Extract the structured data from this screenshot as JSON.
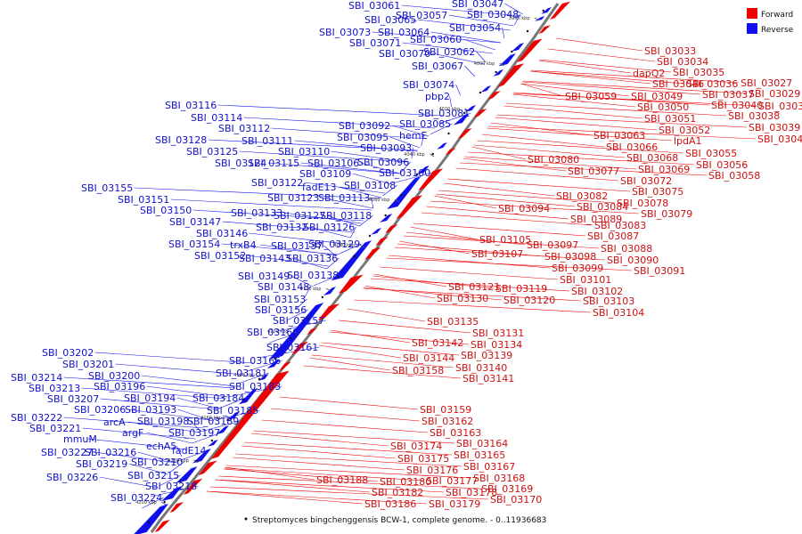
{
  "caption": "Streptomyces bingchenggensis BCW-1, complete genome. - 0..11936683",
  "legend": [
    {
      "label": "Forward",
      "color": "#ee0000"
    },
    {
      "label": "Reverse",
      "color": "#1010ee"
    }
  ],
  "axis": {
    "color": "#777777",
    "ticks": [
      "3980 kbp",
      "4000 kbp",
      "4020 kbp",
      "4040 kbp",
      "4060 kbp",
      "4080 kbp",
      "4100 kbp",
      "4120 kbp",
      "4140 kbp",
      "4160 kbp",
      "4180 kbp",
      "4200 kbp"
    ]
  },
  "reverse_labels": [
    "SBI_03047",
    "SBI_03048",
    "SBI_03061",
    "SBI_03057",
    "SBI_03065",
    "SBI_03054",
    "SBI_03073",
    "SBI_03064",
    "SBI_03060",
    "SBI_03071",
    "SBI_03062",
    "SBI_03070",
    "SBI_03067",
    "SBI_03074",
    "pbp2",
    "SBI_03081",
    "SBI_03085",
    "SBI_03092",
    "SBI_03095",
    "hemE",
    "SBI_03093",
    "SBI_03096",
    "SBI_03100",
    "SBI_03116",
    "SBI_03114",
    "SBI_03112",
    "SBI_03111",
    "SBI_03110",
    "SBI_03128",
    "SBI_03125",
    "SBI_03124",
    "SBI_03115",
    "SBI_03106",
    "SBI_03109",
    "SBI_03108",
    "SBI_03122",
    "fadE13",
    "SBI_03123",
    "SBI_03113",
    "SBI_03155",
    "SBI_03151",
    "SBI_03150",
    "SBI_03133",
    "SBI_03127",
    "SBI_03118",
    "SBI_03132",
    "SBI_03126",
    "SBI_03147",
    "SBI_03146",
    "trxB4",
    "SBI_03137",
    "SBI_03129",
    "SBI_03154",
    "SBI_03152",
    "SBI_03143",
    "SBI_03136",
    "SBI_03149",
    "SBI_03138",
    "SBI_03148",
    "SBI_03153",
    "SBI_03156",
    "SBI_03157",
    "SBI_03160",
    "SBI_03161",
    "SBI_03166",
    "SBI_03181",
    "SBI_03202",
    "SBI_03201",
    "SBI_03200",
    "SBI_03214",
    "SBI_03213",
    "SBI_03196",
    "SBI_03183",
    "SBI_03207",
    "SBI_03194",
    "SBI_03184",
    "SBI_03206",
    "SBI_03193",
    "SBI_03185",
    "SBI_03222",
    "arcA",
    "SBI_03198",
    "SBI_03189",
    "SBI_03221",
    "argF",
    "SBI_03197",
    "mmuM",
    "echA5",
    "SBI_03227",
    "SBI_03216",
    "fadE14",
    "SBI_03219",
    "SBI_03210",
    "SBI_03226",
    "SBI_03215",
    "SBI_03218",
    "SBI_03224"
  ],
  "forward_labels": [
    "SBI_03033",
    "SBI_03034",
    "dapQ2",
    "SBI_03035",
    "SBI_03027",
    "SBI_03046",
    "SBI_03036",
    "SBI_03029",
    "SBI_03037",
    "SBI_03059",
    "SBI_03049",
    "SBI_03040",
    "SBI_03032",
    "SBI_03050",
    "SBI_03038",
    "SBI_03051",
    "SBI_03039",
    "SBI_03052",
    "SBI_03063",
    "lpdA1",
    "SBI_03041",
    "SBI_03066",
    "SBI_03055",
    "SBI_03068",
    "SBI_03056",
    "SBI_03080",
    "SBI_03077",
    "SBI_03069",
    "SBI_03058",
    "SBI_03072",
    "SBI_03075",
    "SBI_03082",
    "SBI_03078",
    "SBI_03084",
    "SBI_03094",
    "SBI_03079",
    "SBI_03089",
    "SBI_03083",
    "SBI_03087",
    "SBI_03105",
    "SBI_03097",
    "SBI_03088",
    "SBI_03107",
    "SBI_03098",
    "SBI_03090",
    "SBI_03099",
    "SBI_03091",
    "SBI_03101",
    "SBI_03121",
    "SBI_03119",
    "SBI_03102",
    "SBI_03130",
    "SBI_03120",
    "SBI_03103",
    "SBI_03104",
    "SBI_03135",
    "SBI_03131",
    "SBI_03142",
    "SBI_03134",
    "SBI_03144",
    "SBI_03139",
    "SBI_03140",
    "SBI_03158",
    "SBI_03141",
    "SBI_03159",
    "SBI_03162",
    "SBI_03163",
    "SBI_03164",
    "SBI_03174",
    "SBI_03165",
    "SBI_03175",
    "SBI_03167",
    "SBI_03176",
    "SBI_03177",
    "SBI_03168",
    "SBI_03188",
    "SBI_03180",
    "SBI_03178",
    "SBI_03169",
    "SBI_03182",
    "SBI_03170",
    "SBI_03186",
    "SBI_03179"
  ]
}
